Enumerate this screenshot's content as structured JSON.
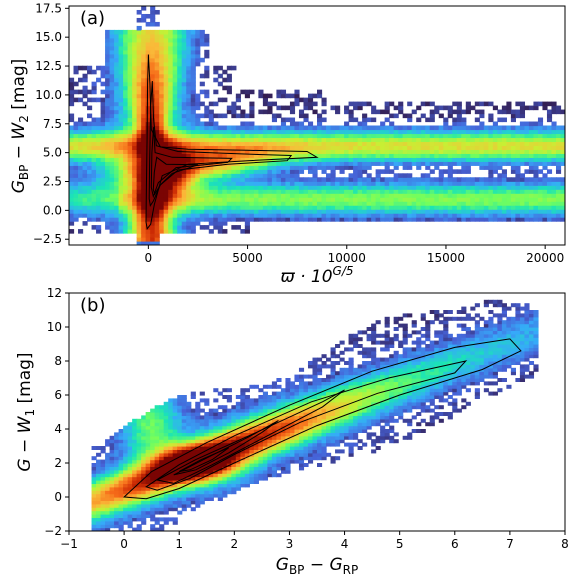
{
  "chart_data": [
    {
      "type": "heatmap",
      "panel_label": "(a)",
      "xlabel_tex": {
        "base": "ϖ · 10",
        "sup": "G/5"
      },
      "ylabel_tex": {
        "base": "G",
        "sub1": "BP",
        "mid": " − W",
        "sub2": "2",
        "unit": " [mag]"
      },
      "xlim": [
        -4000,
        21000
      ],
      "ylim": [
        -3.0,
        17.7
      ],
      "x_ticks": [
        0,
        5000,
        10000,
        15000,
        20000
      ],
      "x_tick_labels": [
        "0",
        "5000",
        "10000",
        "15000",
        "20000"
      ],
      "y_ticks": [
        -2.5,
        0.0,
        2.5,
        5.0,
        7.5,
        10.0,
        12.5,
        15.0,
        17.5
      ],
      "y_tick_labels": [
        "−2.5",
        "0.0",
        "2.5",
        "5.0",
        "7.5",
        "10.0",
        "12.5",
        "15.0",
        "17.5"
      ],
      "colormap": [
        "#30123b",
        "#4662d7",
        "#36aaf9",
        "#1ae4b6",
        "#72fe5e",
        "#c8ef34",
        "#faba39",
        "#f66b19",
        "#cb2a04",
        "#7a0403"
      ],
      "density_features": [
        {
          "feature": "horizontal ridge",
          "x_range": [
            0,
            21000
          ],
          "y_center": 5.5
        },
        {
          "feature": "lower band",
          "x_range": [
            -4000,
            21000
          ],
          "y_center": 1.0
        },
        {
          "feature": "peak",
          "x": 500,
          "y": 3.0
        },
        {
          "feature": "vertical spike",
          "x": 0,
          "y_range": [
            -2.5,
            16.0
          ]
        }
      ]
    },
    {
      "type": "heatmap",
      "panel_label": "(b)",
      "xlabel_tex": {
        "base": "G",
        "sub1": "BP",
        "mid": " − G",
        "sub2": "RP"
      },
      "ylabel_tex": {
        "base": "G − W",
        "sub1": "1",
        "unit": " [mag]"
      },
      "xlim": [
        -1,
        8
      ],
      "ylim": [
        -2,
        12
      ],
      "x_ticks": [
        -1,
        0,
        1,
        2,
        3,
        4,
        5,
        6,
        7,
        8
      ],
      "x_tick_labels": [
        "−1",
        "0",
        "1",
        "2",
        "3",
        "4",
        "5",
        "6",
        "7",
        "8"
      ],
      "y_ticks": [
        -2,
        0,
        2,
        4,
        6,
        8,
        10,
        12
      ],
      "y_tick_labels": [
        "−2",
        "0",
        "2",
        "4",
        "6",
        "8",
        "10",
        "12"
      ],
      "colormap": [
        "#30123b",
        "#4662d7",
        "#36aaf9",
        "#1ae4b6",
        "#72fe5e",
        "#c8ef34",
        "#faba39",
        "#f66b19",
        "#cb2a04",
        "#7a0403"
      ],
      "density_features": [
        {
          "feature": "main sequence ridge",
          "from": [
            0.0,
            0.5
          ],
          "to": [
            7.0,
            9.0
          ]
        },
        {
          "feature": "peak",
          "x": 1.3,
          "y": 2.0
        },
        {
          "feature": "secondary blob",
          "x": 0.5,
          "y": 4.0
        }
      ]
    }
  ]
}
